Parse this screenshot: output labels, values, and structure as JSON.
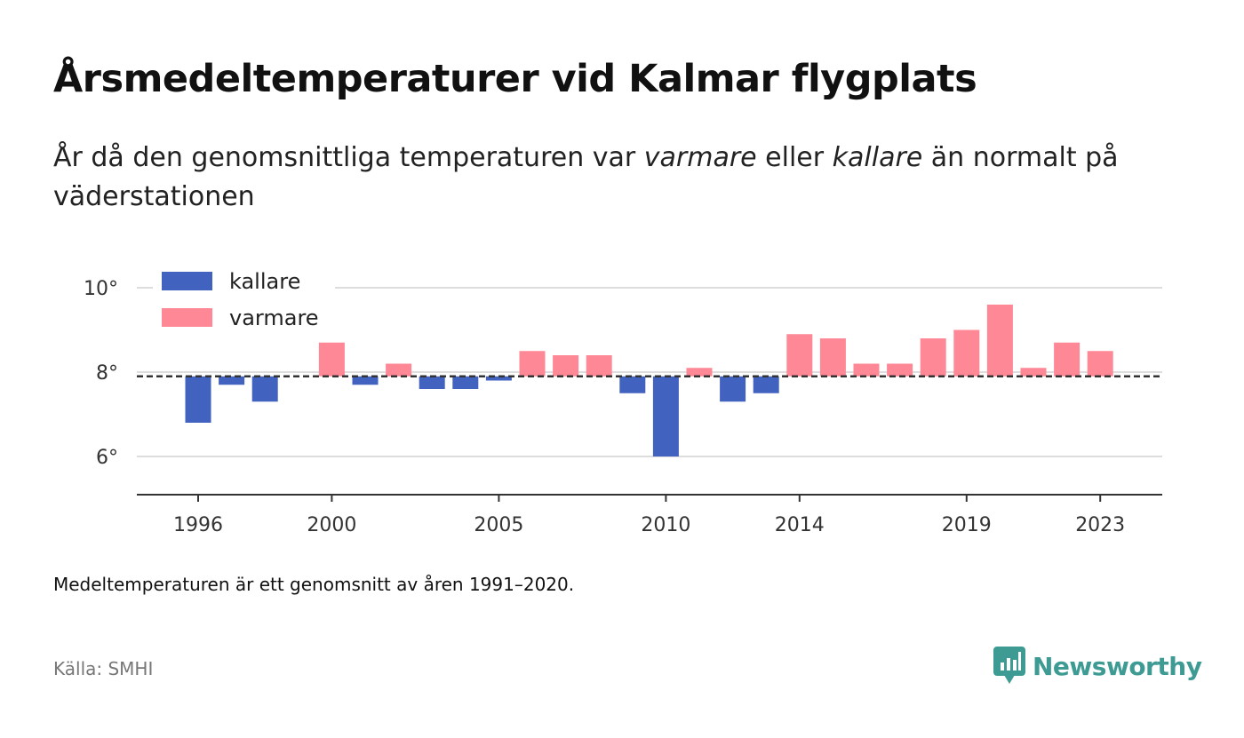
{
  "title": "Årsmedeltemperaturer vid Kalmar flygplats",
  "subtitle": {
    "part1": "År då den genomsnittliga temperaturen var ",
    "warm_word": "varmare",
    "part2": " eller ",
    "cold_word": "kallare",
    "part3": " än normalt på väderstationen"
  },
  "note": "Medeltemperaturen är ett genomsnitt av åren 1991–2020.",
  "source": "Källa: SMHI",
  "brand": {
    "name": "Newsworthy",
    "icon": "newsworthy-logo-icon",
    "color": "#3d9b94"
  },
  "colors": {
    "cold": "#4262c0",
    "warm": "#ff8896",
    "grid": "#dddddd",
    "axis": "#333333",
    "reference": "#333333"
  },
  "chart_data": {
    "type": "bar",
    "baseline": 7.9,
    "ylim": [
      5.1,
      10.2
    ],
    "yticks": [
      6,
      8,
      10
    ],
    "ytick_labels": [
      "6°",
      "8°",
      "10°"
    ],
    "grid": true,
    "legend_position": "top-left",
    "legend": [
      {
        "name": "kallare",
        "color": "#4262c0"
      },
      {
        "name": "varmare",
        "color": "#ff8896"
      }
    ],
    "xtick_labels": [
      "1996",
      "2000",
      "2005",
      "2010",
      "2014",
      "2019",
      "2023"
    ],
    "categories": [
      "1996",
      "1997",
      "1998",
      "1999",
      "2000",
      "2001",
      "2002",
      "2003",
      "2004",
      "2005",
      "2006",
      "2007",
      "2008",
      "2009",
      "2010",
      "2011",
      "2012",
      "2013",
      "2014",
      "2015",
      "2016",
      "2017",
      "2018",
      "2019",
      "2020",
      "2021",
      "2022",
      "2023"
    ],
    "values": [
      6.8,
      7.7,
      7.3,
      null,
      8.7,
      7.7,
      8.2,
      7.6,
      7.6,
      7.8,
      8.5,
      8.4,
      8.4,
      7.5,
      6.0,
      8.1,
      7.3,
      7.5,
      8.9,
      8.8,
      8.2,
      8.2,
      8.8,
      9.0,
      9.6,
      8.1,
      8.7,
      8.5
    ]
  }
}
